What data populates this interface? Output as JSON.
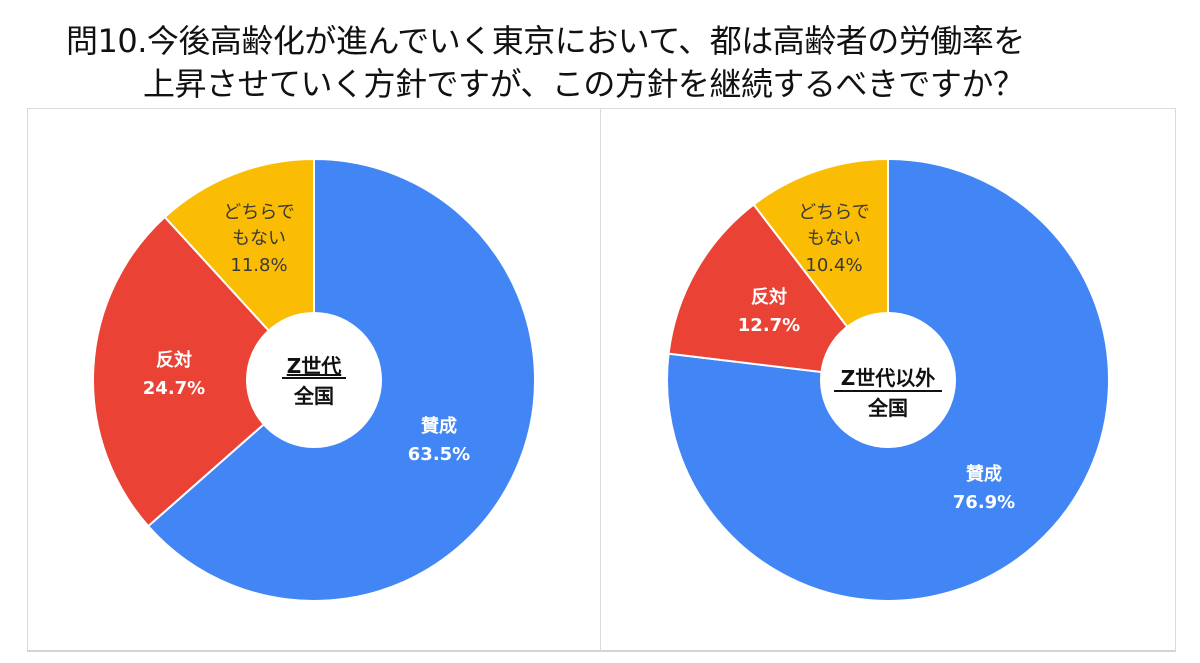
{
  "title": {
    "line1": "問10.今後高齢化が進んでいく東京において、都は高齢者の労働率を",
    "line2": "上昇させていく方針ですが、この方針を継続するべきですか？"
  },
  "colors": {
    "agree": "#4285f4",
    "disagree": "#ea4335",
    "neither": "#fbbc04",
    "border": "#dadada"
  },
  "charts": [
    {
      "center_label_line1": "Z世代",
      "center_label_line2": "全国",
      "slices": [
        {
          "label": "賛成",
          "value": "63.5%"
        },
        {
          "label": "反対",
          "value": "24.7%"
        },
        {
          "label_line1": "どちらで",
          "label_line2": "もない",
          "value": "11.8%"
        }
      ]
    },
    {
      "center_label_line1": "Z世代以外",
      "center_label_line2": "全国",
      "slices": [
        {
          "label": "賛成",
          "value": "76.9%"
        },
        {
          "label": "反対",
          "value": "12.7%"
        },
        {
          "label_line1": "どちらで",
          "label_line2": "もない",
          "value": "10.4%"
        }
      ]
    }
  ],
  "chart_data": [
    {
      "type": "pie",
      "title": "Z世代 全国",
      "categories": [
        "賛成",
        "反対",
        "どちらでもない"
      ],
      "values": [
        63.5,
        24.7,
        11.8
      ],
      "colors": [
        "#4285f4",
        "#ea4335",
        "#fbbc04"
      ],
      "donut": true,
      "start_angle": "12 o'clock, clockwise"
    },
    {
      "type": "pie",
      "title": "Z世代以外 全国",
      "categories": [
        "賛成",
        "反対",
        "どちらでもない"
      ],
      "values": [
        76.9,
        12.7,
        10.4
      ],
      "colors": [
        "#4285f4",
        "#ea4335",
        "#fbbc04"
      ],
      "donut": true,
      "start_angle": "12 o'clock, clockwise"
    }
  ]
}
